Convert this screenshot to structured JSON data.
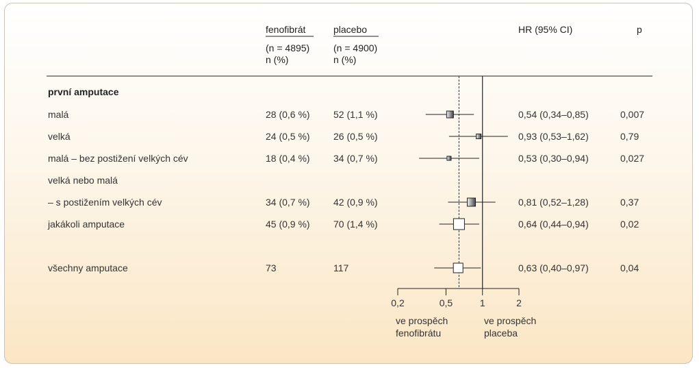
{
  "headers": {
    "col1": "fenofibrát",
    "col1_n": "(n = 4895)",
    "col1_unit": "n (%)",
    "col2": "placebo",
    "col2_n": "(n = 4900)",
    "col2_unit": "n (%)",
    "hr": "HR (95% CI)",
    "p": "p"
  },
  "section_title": "první amputace",
  "rows": [
    {
      "label": "malá",
      "feno": "28 (0,6 %)",
      "plac": "52 (1,1 %)",
      "hr": "0,54 (0,34–0,85)",
      "p": "0,007"
    },
    {
      "label": "velká",
      "feno": "24 (0,5 %)",
      "plac": "26 (0,5 %)",
      "hr": "0,93 (0,53–1,62)",
      "p": "0,79"
    },
    {
      "label": "malá – bez postižení velkých cév",
      "feno": "18 (0,4 %)",
      "plac": "34 (0,7 %)",
      "hr": "0,53 (0,30–0,94)",
      "p": "0,027"
    },
    {
      "label": "velká nebo malá",
      "feno": "",
      "plac": "",
      "hr": "",
      "p": ""
    },
    {
      "label": "– s postižením velkých cév",
      "feno": "34 (0,7 %)",
      "plac": "42 (0,9 %)",
      "hr": "0,81 (0,52–1,28)",
      "p": "0,37"
    },
    {
      "label": "jakákoli amputace",
      "feno": "45 (0,9 %)",
      "plac": "70 (1,4 %)",
      "hr": "0,64 (0,44–0,94)",
      "p": "0,02"
    },
    {
      "label": "všechny amputace",
      "feno": "73",
      "plac": "117",
      "hr": "0,63 (0,40–0,97)",
      "p": "0,04"
    }
  ],
  "axis": {
    "ticks": [
      "0,2",
      "0,5",
      "1",
      "2"
    ],
    "left_label_1": "ve prospěch",
    "left_label_2": "fenofibrátu",
    "right_label_1": "ve prospěch",
    "right_label_2": "placeba"
  },
  "chart_data": {
    "type": "forest",
    "scale": "log",
    "xlim": [
      0.2,
      2
    ],
    "reference_line": 1,
    "overall_dashed_line": 0.64,
    "points": [
      {
        "label": "malá",
        "hr": 0.54,
        "lo": 0.34,
        "hi": 0.85,
        "style": "gradient-filled"
      },
      {
        "label": "velká",
        "hr": 0.93,
        "lo": 0.53,
        "hi": 1.62,
        "style": "gradient-filled"
      },
      {
        "label": "malá – bez postižení velkých cév",
        "hr": 0.53,
        "lo": 0.3,
        "hi": 0.94,
        "style": "gradient-filled"
      },
      {
        "label": "– s postižením velkých cév",
        "hr": 0.81,
        "lo": 0.52,
        "hi": 1.28,
        "style": "gradient-filled"
      },
      {
        "label": "jakákoli amputace",
        "hr": 0.64,
        "lo": 0.44,
        "hi": 0.94,
        "style": "open"
      },
      {
        "label": "všechny amputace",
        "hr": 0.63,
        "lo": 0.4,
        "hi": 0.97,
        "style": "open"
      }
    ]
  }
}
